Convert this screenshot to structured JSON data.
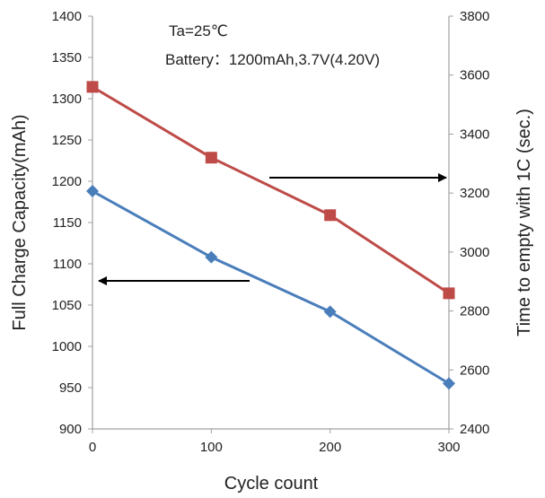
{
  "chart_data": {
    "type": "line",
    "title": "",
    "annotations": [
      "Ta=25℃",
      "Battery：1200mAh,3.7V(4.20V)"
    ],
    "xlabel": "Cycle count",
    "ylabel_left": "Full Charge Capacity(mAh)",
    "ylabel_right": "Time to empty with 1C (sec.)",
    "x": [
      0,
      100,
      200,
      300
    ],
    "xlim": [
      0,
      300
    ],
    "x_ticks": [
      "0",
      "100",
      "200",
      "300"
    ],
    "ylim_left": [
      900,
      1400
    ],
    "y_ticks_left": [
      "900",
      "950",
      "1000",
      "1050",
      "1100",
      "1150",
      "1200",
      "1250",
      "1300",
      "1350",
      "1400"
    ],
    "ylim_right": [
      2400,
      3800
    ],
    "y_ticks_right": [
      "2400",
      "2600",
      "2800",
      "3000",
      "3200",
      "3400",
      "3600",
      "3800"
    ],
    "grid": false,
    "series": [
      {
        "values": [
          1188,
          1108,
          1042,
          955
        ],
        "axis": "left",
        "color": "#4a7ebb",
        "marker": "diamond"
      },
      {
        "values": [
          3560,
          3320,
          3125,
          2860
        ],
        "axis": "right",
        "color": "#be4b48",
        "marker": "square"
      }
    ],
    "arrows": [
      {
        "direction": "left",
        "points_to_axis": "left"
      },
      {
        "direction": "right",
        "points_to_axis": "right"
      }
    ]
  }
}
